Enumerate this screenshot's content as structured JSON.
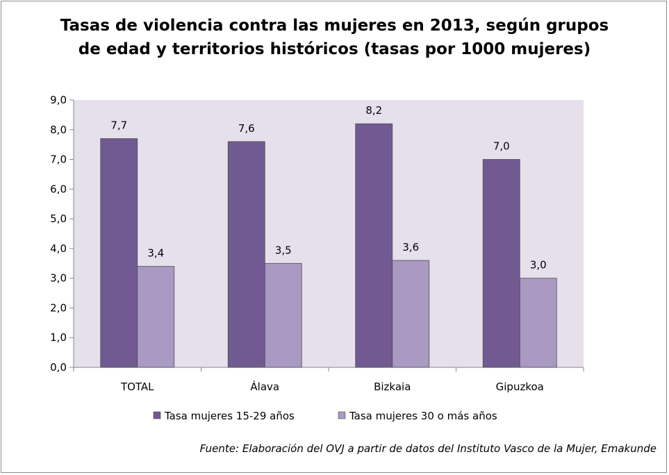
{
  "chart_data": {
    "type": "bar",
    "title_lines": [
      "Tasas de violencia contra las mujeres en 2013, según grupos",
      "de edad y territorios históricos (tasas por 1000 mujeres)"
    ],
    "categories": [
      "TOTAL",
      "Álava",
      "Bizkaia",
      "Gipuzkoa"
    ],
    "series": [
      {
        "name": "Tasa mujeres 15-29 años",
        "values": [
          7.7,
          7.6,
          8.2,
          7.0
        ],
        "labels": [
          "7,7",
          "7,6",
          "8,2",
          "7,0"
        ],
        "color": "#715a91"
      },
      {
        "name": "Tasa mujeres 30 o más años",
        "values": [
          3.4,
          3.5,
          3.6,
          3.0
        ],
        "labels": [
          "3,4",
          "3,5",
          "3,6",
          "3,0"
        ],
        "color": "#a999c3"
      }
    ],
    "yticks": [
      "0,0",
      "1,0",
      "2,0",
      "3,0",
      "4,0",
      "5,0",
      "6,0",
      "7,0",
      "8,0",
      "9,0"
    ],
    "ylim": [
      0,
      9
    ],
    "xlabel": "",
    "ylabel": "",
    "legend_position": "bottom",
    "plot_background": "#e6e0ec",
    "source": "Fuente: Elaboración del OVJ a partir de datos del Instituto Vasco de la Mujer, Emakunde"
  }
}
